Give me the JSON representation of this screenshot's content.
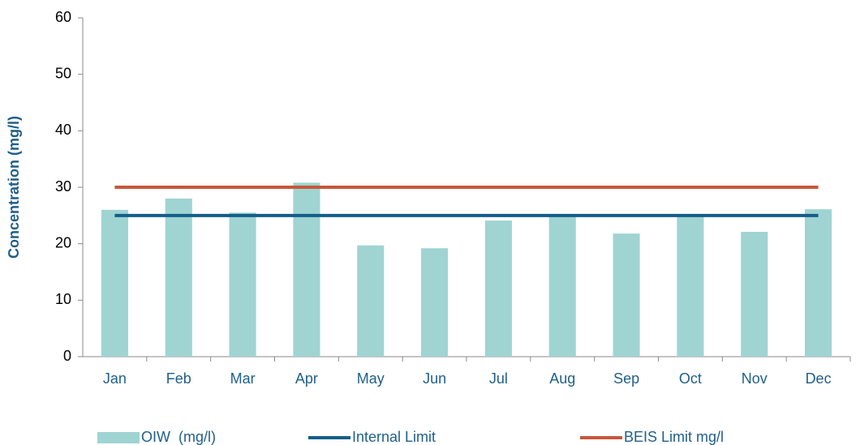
{
  "chart_data": {
    "type": "bar",
    "y_label": "Concentration (mg/l)",
    "categories": [
      "Jan",
      "Feb",
      "Mar",
      "Apr",
      "May",
      "Jun",
      "Jul",
      "Aug",
      "Sep",
      "Oct",
      "Nov",
      "Dec"
    ],
    "series": [
      {
        "name": "OIW  (mg/l)",
        "type": "bar",
        "color": "#9fd4d3",
        "values": [
          26.0,
          28.0,
          25.5,
          30.8,
          19.7,
          19.2,
          24.1,
          25.1,
          21.8,
          25.1,
          22.1,
          26.1
        ]
      },
      {
        "name": "Internal Limit",
        "type": "line",
        "color": "#135e8a",
        "values": [
          25,
          25,
          25,
          25,
          25,
          25,
          25,
          25,
          25,
          25,
          25,
          25
        ]
      },
      {
        "name": "BEIS Limit mg/l",
        "type": "line",
        "color": "#c8573a",
        "values": [
          30,
          30,
          30,
          30,
          30,
          30,
          30,
          30,
          30,
          30,
          30,
          30
        ]
      }
    ],
    "ylim": [
      0,
      60
    ],
    "yticks": [
      0,
      10,
      20,
      30,
      40,
      50,
      60
    ],
    "grid": false,
    "legend": "bottom"
  }
}
